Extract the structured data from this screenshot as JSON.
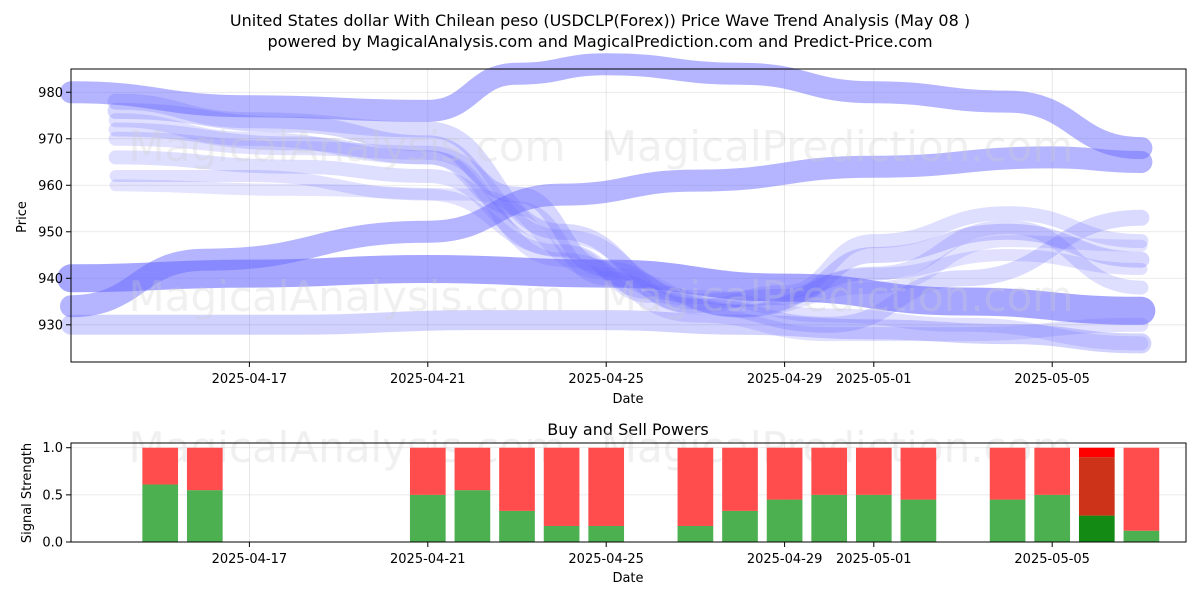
{
  "title_line1": "United States dollar With Chilean peso (USDCLP(Forex)) Price Wave Trend Analysis (May 08 )",
  "title_line2": "powered by MagicalAnalysis.com and MagicalPrediction.com and Predict-Price.com",
  "watermarks": [
    "MagicalAnalysis.com",
    "MagicalPrediction.com"
  ],
  "colors": {
    "wave": "#6b6bff",
    "buy": "#4caf50",
    "sell": "#ff4c4c",
    "buy_strong": "#138a13",
    "sell_strong": "#ff0000",
    "mid_strong": "#cc3318"
  },
  "chart_data": [
    {
      "type": "line",
      "title": "",
      "xlabel": "Date",
      "ylabel": "Price",
      "x_tick_labels": [
        "2025-04-17",
        "2025-04-21",
        "2025-04-25",
        "2025-04-29",
        "2025-05-01",
        "2025-05-05"
      ],
      "y_tick_labels": [
        "930",
        "940",
        "950",
        "960",
        "970",
        "980"
      ],
      "ylim": [
        922,
        985
      ],
      "xlim": [
        "2025-04-13",
        "2025-05-08"
      ],
      "grid": true,
      "series": [
        {
          "x": [
            "2025-04-13",
            "2025-04-17",
            "2025-04-21",
            "2025-04-23",
            "2025-04-25",
            "2025-04-28",
            "2025-05-01",
            "2025-05-04",
            "2025-05-07"
          ],
          "y": [
            980,
            977,
            976,
            984,
            986,
            984,
            980,
            978,
            968
          ],
          "width": 22,
          "opacity": 0.5
        },
        {
          "x": [
            "2025-04-13",
            "2025-04-17",
            "2025-04-21",
            "2025-04-25",
            "2025-04-29",
            "2025-05-03",
            "2025-05-07"
          ],
          "y": [
            940,
            941,
            942,
            941,
            938,
            935,
            933
          ],
          "width": 28,
          "opacity": 0.6
        },
        {
          "x": [
            "2025-04-13",
            "2025-04-16",
            "2025-04-21",
            "2025-04-24",
            "2025-04-27",
            "2025-05-01",
            "2025-05-05",
            "2025-05-07"
          ],
          "y": [
            934,
            944,
            950,
            958,
            961,
            964,
            966,
            965
          ],
          "width": 22,
          "opacity": 0.5
        },
        {
          "x": [
            "2025-04-14",
            "2025-04-18",
            "2025-04-21",
            "2025-04-23",
            "2025-04-25",
            "2025-04-27",
            "2025-04-29",
            "2025-05-01",
            "2025-05-04",
            "2025-05-07"
          ],
          "y": [
            976,
            973,
            969,
            958,
            942,
            935,
            936,
            945,
            950,
            944
          ],
          "width": 16,
          "opacity": 0.28
        },
        {
          "x": [
            "2025-04-14",
            "2025-04-18",
            "2025-04-21",
            "2025-04-23",
            "2025-04-25",
            "2025-04-27",
            "2025-04-29",
            "2025-05-01",
            "2025-05-04",
            "2025-05-07"
          ],
          "y": [
            972,
            969,
            966,
            955,
            940,
            934,
            937,
            948,
            954,
            948
          ],
          "width": 14,
          "opacity": 0.22
        },
        {
          "x": [
            "2025-04-14",
            "2025-04-18",
            "2025-04-21",
            "2025-04-24",
            "2025-04-26",
            "2025-04-28",
            "2025-05-01",
            "2025-05-04",
            "2025-05-07"
          ],
          "y": [
            966,
            964,
            962,
            946,
            937,
            933,
            941,
            951,
            938
          ],
          "width": 14,
          "opacity": 0.22
        },
        {
          "x": [
            "2025-04-14",
            "2025-04-17",
            "2025-04-21",
            "2025-04-24",
            "2025-04-26",
            "2025-04-28",
            "2025-05-01",
            "2025-05-04",
            "2025-05-07"
          ],
          "y": [
            962,
            962,
            958,
            946,
            936,
            933,
            941,
            945,
            942
          ],
          "width": 12,
          "opacity": 0.2
        },
        {
          "x": [
            "2025-04-14",
            "2025-04-17",
            "2025-04-21",
            "2025-04-24",
            "2025-04-27",
            "2025-04-30",
            "2025-05-03",
            "2025-05-07"
          ],
          "y": [
            978,
            974,
            972,
            950,
            934,
            930,
            940,
            953
          ],
          "width": 16,
          "opacity": 0.25
        },
        {
          "x": [
            "2025-04-14",
            "2025-04-18",
            "2025-04-21",
            "2025-04-24",
            "2025-04-27",
            "2025-04-30",
            "2025-05-03",
            "2025-05-07"
          ],
          "y": [
            970,
            968,
            967,
            949,
            936,
            932,
            930,
            926
          ],
          "width": 14,
          "opacity": 0.2
        },
        {
          "x": [
            "2025-04-14",
            "2025-04-17",
            "2025-04-21",
            "2025-04-24",
            "2025-04-27",
            "2025-04-30",
            "2025-05-03",
            "2025-05-07"
          ],
          "y": [
            974,
            970,
            966,
            944,
            932,
            928,
            928,
            930
          ],
          "width": 14,
          "opacity": 0.2
        },
        {
          "x": [
            "2025-04-14",
            "2025-04-18",
            "2025-04-22",
            "2025-04-25",
            "2025-04-28",
            "2025-05-01",
            "2025-05-04",
            "2025-05-07"
          ],
          "y": [
            960,
            959,
            958,
            941,
            933,
            938,
            948,
            947
          ],
          "width": 12,
          "opacity": 0.18
        },
        {
          "x": [
            "2025-04-13",
            "2025-04-18",
            "2025-04-22",
            "2025-04-25",
            "2025-04-28",
            "2025-05-01",
            "2025-05-04",
            "2025-05-07"
          ],
          "y": [
            930,
            930,
            931,
            931,
            930,
            929,
            928,
            926
          ],
          "width": 20,
          "opacity": 0.3
        }
      ]
    },
    {
      "type": "bar",
      "title": "Buy and Sell Powers",
      "xlabel": "Date",
      "ylabel": "Signal Strength",
      "x_tick_labels": [
        "2025-04-17",
        "2025-04-21",
        "2025-04-25",
        "2025-04-29",
        "2025-05-01",
        "2025-05-05"
      ],
      "y_tick_labels": [
        "0.0",
        "0.5",
        "1.0"
      ],
      "ylim": [
        0,
        1.05
      ],
      "xlim": [
        "2025-04-13",
        "2025-05-08"
      ],
      "categories": [
        "2025-04-15",
        "2025-04-16",
        "2025-04-21",
        "2025-04-22",
        "2025-04-23",
        "2025-04-24",
        "2025-04-25",
        "2025-04-27",
        "2025-04-28",
        "2025-04-29",
        "2025-04-30",
        "2025-05-01",
        "2025-05-02",
        "2025-05-04",
        "2025-05-05",
        "2025-05-06",
        "2025-05-07"
      ],
      "series": [
        {
          "name": "Buy",
          "values": [
            0.61,
            0.55,
            0.5,
            0.55,
            0.33,
            0.17,
            0.17,
            0.17,
            0.33,
            0.45,
            0.5,
            0.5,
            0.45,
            0.45,
            0.5,
            0.28,
            0.12
          ]
        },
        {
          "name": "Sell",
          "values": [
            0.39,
            0.45,
            0.5,
            0.45,
            0.67,
            0.83,
            0.83,
            0.83,
            0.67,
            0.55,
            0.5,
            0.5,
            0.55,
            0.55,
            0.5,
            0.72,
            0.88
          ]
        }
      ],
      "highlight_category": "2025-05-06"
    }
  ]
}
